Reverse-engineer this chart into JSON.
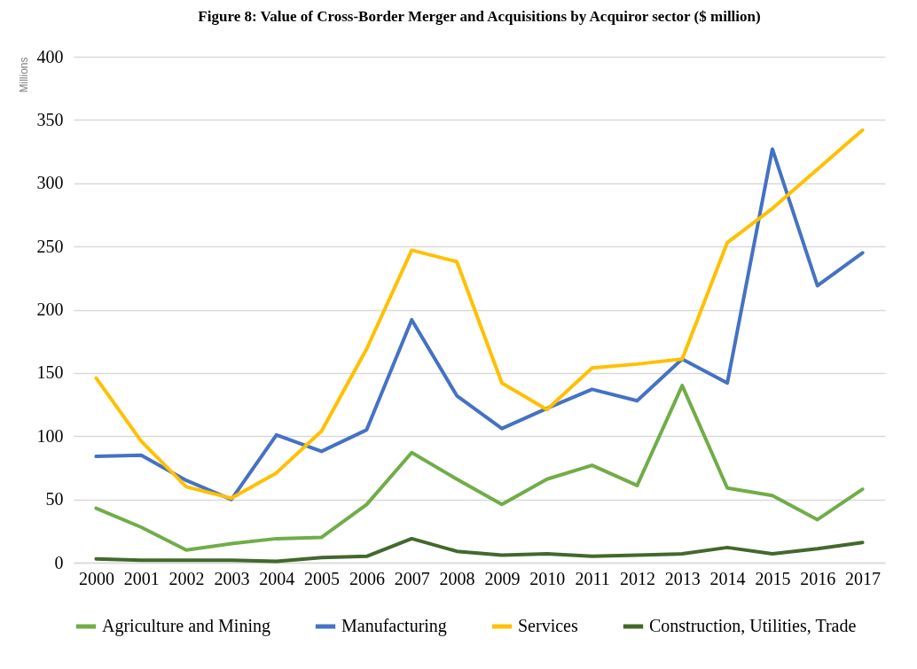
{
  "chart_data": {
    "type": "line",
    "title": "Figure 8: Value of Cross-Border Merger and Acquisitions by Acquiror sector ($ million)",
    "ylabel": "Millions",
    "categories": [
      "2000",
      "2001",
      "2002",
      "2003",
      "2004",
      "2005",
      "2006",
      "2007",
      "2008",
      "2009",
      "2010",
      "2011",
      "2012",
      "2013",
      "2014",
      "2015",
      "2016",
      "2017"
    ],
    "series": [
      {
        "name": "Agriculture and Mining",
        "color": "#70ad47",
        "values": [
          43,
          28,
          10,
          15,
          19,
          20,
          46,
          87,
          66,
          46,
          66,
          77,
          61,
          140,
          59,
          53,
          34,
          58
        ]
      },
      {
        "name": "Manufacturing",
        "color": "#4472c4",
        "values": [
          84,
          85,
          65,
          50,
          101,
          88,
          105,
          192,
          132,
          106,
          122,
          137,
          128,
          161,
          142,
          327,
          219,
          245
        ]
      },
      {
        "name": "Services",
        "color": "#ffc000",
        "values": [
          146,
          96,
          60,
          51,
          71,
          104,
          169,
          247,
          238,
          142,
          121,
          154,
          157,
          161,
          253,
          280,
          311,
          342
        ]
      },
      {
        "name": "Construction, Utilities, Trade",
        "color": "#43682b",
        "values": [
          3,
          2,
          2,
          2,
          1,
          4,
          5,
          19,
          9,
          6,
          7,
          5,
          6,
          7,
          12,
          7,
          11,
          16
        ]
      }
    ],
    "ylim": [
      0,
      400
    ],
    "yticks": [
      0,
      50,
      100,
      150,
      200,
      250,
      300,
      350,
      400
    ],
    "grid": "y",
    "legend": "bottom",
    "marker": "none",
    "line_style": "solid"
  }
}
